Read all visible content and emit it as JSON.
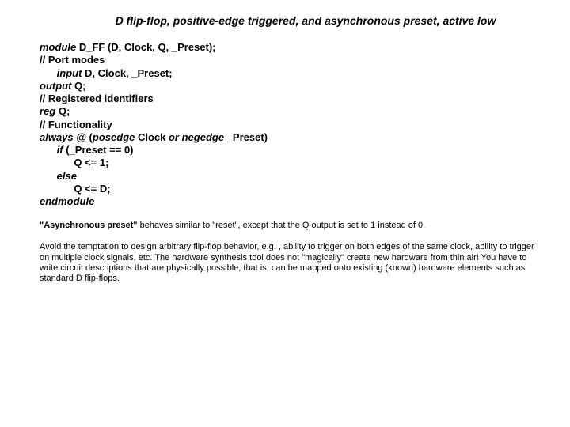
{
  "colors": {
    "background": "#ffffff",
    "text": "#000000"
  },
  "typography": {
    "title_fontsize": 14,
    "code_fontsize": 13,
    "note_fontsize": 11,
    "font_family": "Arial"
  },
  "title": "D flip-flop, positive-edge triggered, and asynchronous preset, active low",
  "code": {
    "l1a": "module",
    "l1b": " D_FF (D, Clock, Q, _Preset);",
    "l2": "// Port modes",
    "l3a": "      input",
    "l3b": " D, Clock, _Preset;",
    "l4a": "output",
    "l4b": " Q;",
    "l5": "// Registered identifiers",
    "l6a": "reg",
    "l6b": " Q;",
    "l7": "// Functionality",
    "l8a": "always @ ",
    "l8b": "(",
    "l8c": "posedge",
    "l8d": " Clock ",
    "l8e": "or negedge",
    "l8f": " _Preset)",
    "l9a": "      if",
    "l9b": " (_Preset == 0)",
    "l10": "            Q <= 1;",
    "l11": "      else",
    "l12": "            Q <= D;",
    "l13": "endmodule"
  },
  "notes": {
    "note1a": "\"Asynchronous preset\"",
    "note1b": " behaves similar to \"reset\", except that the Q output is set to 1 instead of 0.",
    "note2": "Avoid the temptation to design arbitrary flip-flop behavior, e.g. , ability to trigger on both edges of the same clock, ability to trigger on multiple clock signals, etc. The hardware synthesis tool does not \"magically\" create new hardware from thin air! You have to write circuit descriptions that are physically possible, that is, can be mapped onto existing (known) hardware elements such as standard D flip-flops."
  }
}
